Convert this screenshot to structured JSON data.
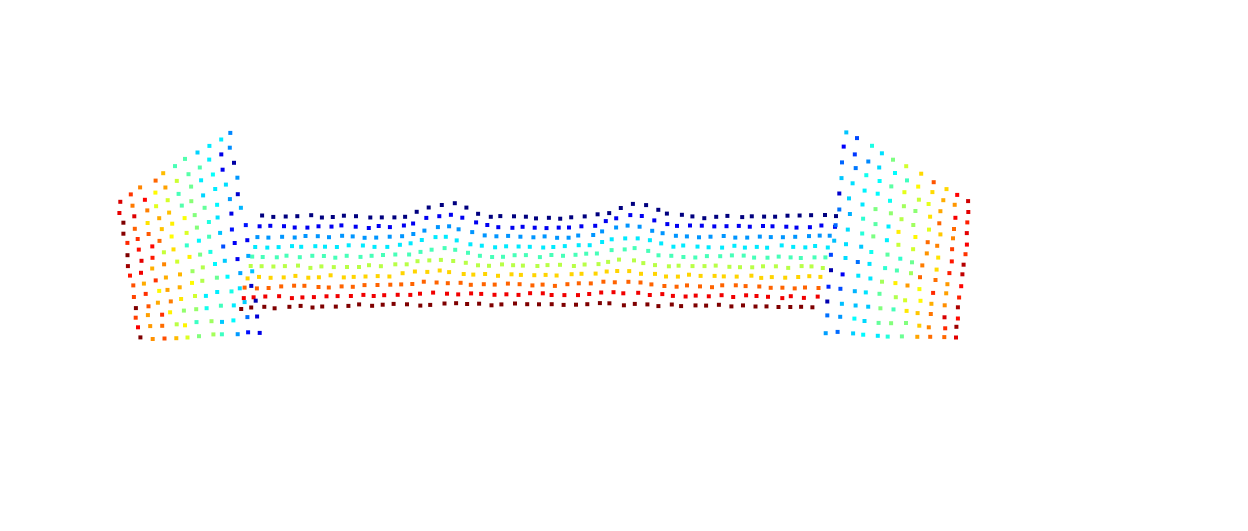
{
  "scene": {
    "background": "#ffffff",
    "marker": "square",
    "colormap": "jet",
    "colormap_stops": [
      "#00007f",
      "#0000ff",
      "#00bfff",
      "#00ffff",
      "#7fff7f",
      "#ffff00",
      "#ff7f00",
      "#ff0000",
      "#7f0000"
    ]
  }
}
